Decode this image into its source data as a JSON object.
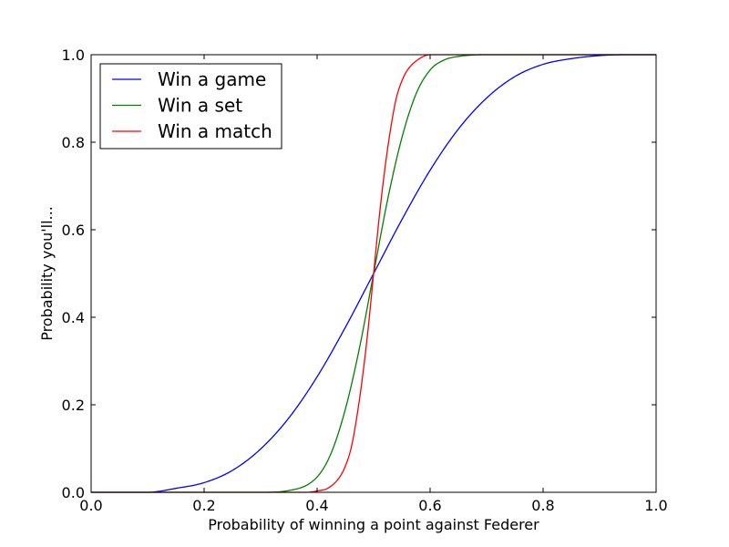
{
  "chart_data": {
    "type": "line",
    "title": "",
    "xlabel": "Probability of winning a point against Federer",
    "ylabel": "Probability you'll...",
    "xlim": [
      0.0,
      1.0
    ],
    "ylim": [
      0.0,
      1.0
    ],
    "xticks": [
      "0.0",
      "0.2",
      "0.4",
      "0.6",
      "0.8",
      "1.0"
    ],
    "yticks": [
      "0.0",
      "0.2",
      "0.4",
      "0.6",
      "0.8",
      "1.0"
    ],
    "grid": false,
    "legend_position": "top-left",
    "series": [
      {
        "name": "Win a game",
        "color": "#0000ff",
        "x": [
          0.0,
          0.05,
          0.1,
          0.15,
          0.2,
          0.25,
          0.3,
          0.35,
          0.4,
          0.45,
          0.5,
          0.55,
          0.6,
          0.65,
          0.7,
          0.75,
          0.8,
          0.85,
          0.9,
          0.95,
          1.0
        ],
        "y": [
          0.0,
          0.0,
          0.0,
          0.009,
          0.022,
          0.05,
          0.099,
          0.17,
          0.264,
          0.377,
          0.5,
          0.623,
          0.736,
          0.83,
          0.901,
          0.95,
          0.978,
          0.991,
          0.998,
          1.0,
          1.0
        ]
      },
      {
        "name": "Win a set",
        "color": "#008000",
        "x": [
          0.0,
          0.3,
          0.35,
          0.4,
          0.425,
          0.45,
          0.475,
          0.5,
          0.525,
          0.55,
          0.575,
          0.6,
          0.625,
          0.65,
          0.7,
          1.0
        ],
        "y": [
          0.0,
          0.0,
          0.004,
          0.035,
          0.09,
          0.19,
          0.33,
          0.5,
          0.67,
          0.81,
          0.91,
          0.965,
          0.988,
          0.996,
          1.0,
          1.0
        ]
      },
      {
        "name": "Win a match",
        "color": "#ff0000",
        "x": [
          0.0,
          0.38,
          0.4,
          0.42,
          0.44,
          0.45,
          0.46,
          0.47,
          0.48,
          0.49,
          0.5,
          0.51,
          0.52,
          0.53,
          0.54,
          0.55,
          0.56,
          0.58,
          0.6,
          1.0
        ],
        "y": [
          0.0,
          0.0,
          0.003,
          0.01,
          0.035,
          0.06,
          0.1,
          0.17,
          0.26,
          0.37,
          0.5,
          0.63,
          0.74,
          0.83,
          0.9,
          0.94,
          0.965,
          0.99,
          1.0,
          1.0
        ]
      }
    ]
  }
}
